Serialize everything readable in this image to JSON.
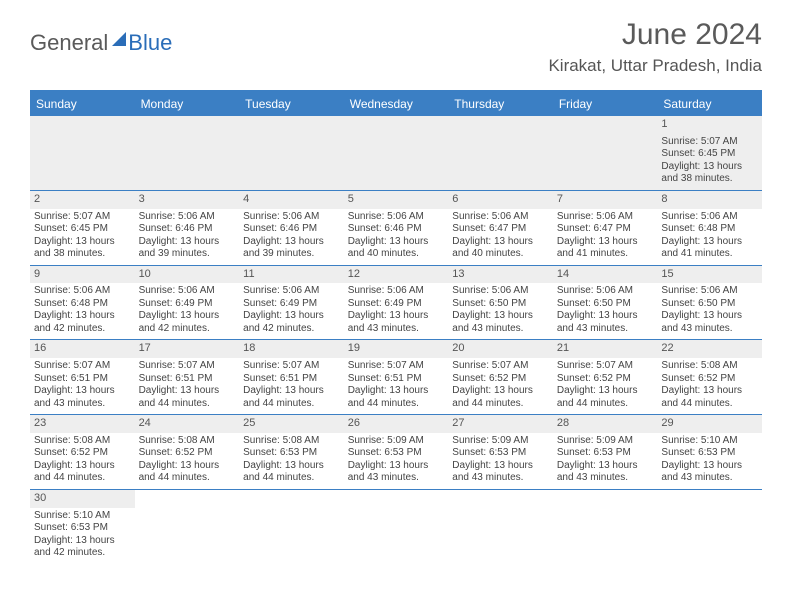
{
  "logo": {
    "part1": "General",
    "part2": "Blue"
  },
  "title": "June 2024",
  "location": "Kirakat, Uttar Pradesh, India",
  "weekdays": [
    "Sunday",
    "Monday",
    "Tuesday",
    "Wednesday",
    "Thursday",
    "Friday",
    "Saturday"
  ],
  "colors": {
    "header_bar": "#3b7fc4",
    "header_text": "#ffffff",
    "logo_gray": "#5a5a5a",
    "logo_blue": "#2a6db8",
    "cell_text": "#444444",
    "daynum_bg": "#eeeeee"
  },
  "weeks": [
    [
      null,
      null,
      null,
      null,
      null,
      null,
      {
        "n": "1",
        "sr": "Sunrise: 5:07 AM",
        "ss": "Sunset: 6:45 PM",
        "d1": "Daylight: 13 hours",
        "d2": "and 38 minutes."
      }
    ],
    [
      {
        "n": "2",
        "sr": "Sunrise: 5:07 AM",
        "ss": "Sunset: 6:45 PM",
        "d1": "Daylight: 13 hours",
        "d2": "and 38 minutes."
      },
      {
        "n": "3",
        "sr": "Sunrise: 5:06 AM",
        "ss": "Sunset: 6:46 PM",
        "d1": "Daylight: 13 hours",
        "d2": "and 39 minutes."
      },
      {
        "n": "4",
        "sr": "Sunrise: 5:06 AM",
        "ss": "Sunset: 6:46 PM",
        "d1": "Daylight: 13 hours",
        "d2": "and 39 minutes."
      },
      {
        "n": "5",
        "sr": "Sunrise: 5:06 AM",
        "ss": "Sunset: 6:46 PM",
        "d1": "Daylight: 13 hours",
        "d2": "and 40 minutes."
      },
      {
        "n": "6",
        "sr": "Sunrise: 5:06 AM",
        "ss": "Sunset: 6:47 PM",
        "d1": "Daylight: 13 hours",
        "d2": "and 40 minutes."
      },
      {
        "n": "7",
        "sr": "Sunrise: 5:06 AM",
        "ss": "Sunset: 6:47 PM",
        "d1": "Daylight: 13 hours",
        "d2": "and 41 minutes."
      },
      {
        "n": "8",
        "sr": "Sunrise: 5:06 AM",
        "ss": "Sunset: 6:48 PM",
        "d1": "Daylight: 13 hours",
        "d2": "and 41 minutes."
      }
    ],
    [
      {
        "n": "9",
        "sr": "Sunrise: 5:06 AM",
        "ss": "Sunset: 6:48 PM",
        "d1": "Daylight: 13 hours",
        "d2": "and 42 minutes."
      },
      {
        "n": "10",
        "sr": "Sunrise: 5:06 AM",
        "ss": "Sunset: 6:49 PM",
        "d1": "Daylight: 13 hours",
        "d2": "and 42 minutes."
      },
      {
        "n": "11",
        "sr": "Sunrise: 5:06 AM",
        "ss": "Sunset: 6:49 PM",
        "d1": "Daylight: 13 hours",
        "d2": "and 42 minutes."
      },
      {
        "n": "12",
        "sr": "Sunrise: 5:06 AM",
        "ss": "Sunset: 6:49 PM",
        "d1": "Daylight: 13 hours",
        "d2": "and 43 minutes."
      },
      {
        "n": "13",
        "sr": "Sunrise: 5:06 AM",
        "ss": "Sunset: 6:50 PM",
        "d1": "Daylight: 13 hours",
        "d2": "and 43 minutes."
      },
      {
        "n": "14",
        "sr": "Sunrise: 5:06 AM",
        "ss": "Sunset: 6:50 PM",
        "d1": "Daylight: 13 hours",
        "d2": "and 43 minutes."
      },
      {
        "n": "15",
        "sr": "Sunrise: 5:06 AM",
        "ss": "Sunset: 6:50 PM",
        "d1": "Daylight: 13 hours",
        "d2": "and 43 minutes."
      }
    ],
    [
      {
        "n": "16",
        "sr": "Sunrise: 5:07 AM",
        "ss": "Sunset: 6:51 PM",
        "d1": "Daylight: 13 hours",
        "d2": "and 43 minutes."
      },
      {
        "n": "17",
        "sr": "Sunrise: 5:07 AM",
        "ss": "Sunset: 6:51 PM",
        "d1": "Daylight: 13 hours",
        "d2": "and 44 minutes."
      },
      {
        "n": "18",
        "sr": "Sunrise: 5:07 AM",
        "ss": "Sunset: 6:51 PM",
        "d1": "Daylight: 13 hours",
        "d2": "and 44 minutes."
      },
      {
        "n": "19",
        "sr": "Sunrise: 5:07 AM",
        "ss": "Sunset: 6:51 PM",
        "d1": "Daylight: 13 hours",
        "d2": "and 44 minutes."
      },
      {
        "n": "20",
        "sr": "Sunrise: 5:07 AM",
        "ss": "Sunset: 6:52 PM",
        "d1": "Daylight: 13 hours",
        "d2": "and 44 minutes."
      },
      {
        "n": "21",
        "sr": "Sunrise: 5:07 AM",
        "ss": "Sunset: 6:52 PM",
        "d1": "Daylight: 13 hours",
        "d2": "and 44 minutes."
      },
      {
        "n": "22",
        "sr": "Sunrise: 5:08 AM",
        "ss": "Sunset: 6:52 PM",
        "d1": "Daylight: 13 hours",
        "d2": "and 44 minutes."
      }
    ],
    [
      {
        "n": "23",
        "sr": "Sunrise: 5:08 AM",
        "ss": "Sunset: 6:52 PM",
        "d1": "Daylight: 13 hours",
        "d2": "and 44 minutes."
      },
      {
        "n": "24",
        "sr": "Sunrise: 5:08 AM",
        "ss": "Sunset: 6:52 PM",
        "d1": "Daylight: 13 hours",
        "d2": "and 44 minutes."
      },
      {
        "n": "25",
        "sr": "Sunrise: 5:08 AM",
        "ss": "Sunset: 6:53 PM",
        "d1": "Daylight: 13 hours",
        "d2": "and 44 minutes."
      },
      {
        "n": "26",
        "sr": "Sunrise: 5:09 AM",
        "ss": "Sunset: 6:53 PM",
        "d1": "Daylight: 13 hours",
        "d2": "and 43 minutes."
      },
      {
        "n": "27",
        "sr": "Sunrise: 5:09 AM",
        "ss": "Sunset: 6:53 PM",
        "d1": "Daylight: 13 hours",
        "d2": "and 43 minutes."
      },
      {
        "n": "28",
        "sr": "Sunrise: 5:09 AM",
        "ss": "Sunset: 6:53 PM",
        "d1": "Daylight: 13 hours",
        "d2": "and 43 minutes."
      },
      {
        "n": "29",
        "sr": "Sunrise: 5:10 AM",
        "ss": "Sunset: 6:53 PM",
        "d1": "Daylight: 13 hours",
        "d2": "and 43 minutes."
      }
    ],
    [
      {
        "n": "30",
        "sr": "Sunrise: 5:10 AM",
        "ss": "Sunset: 6:53 PM",
        "d1": "Daylight: 13 hours",
        "d2": "and 42 minutes."
      },
      null,
      null,
      null,
      null,
      null,
      null
    ]
  ]
}
